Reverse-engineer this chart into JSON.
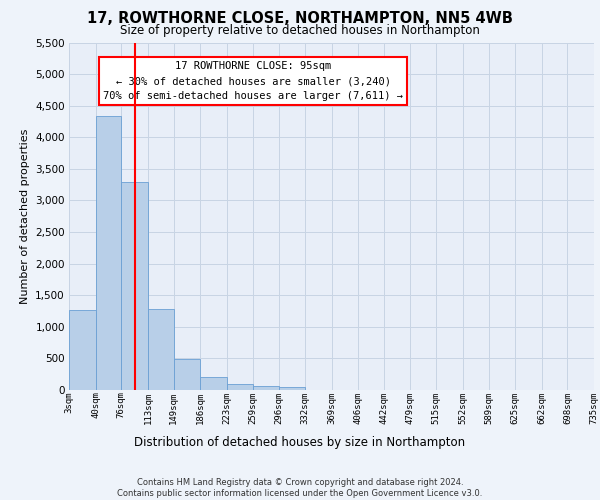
{
  "title": "17, ROWTHORNE CLOSE, NORTHAMPTON, NN5 4WB",
  "subtitle": "Size of property relative to detached houses in Northampton",
  "xlabel": "Distribution of detached houses by size in Northampton",
  "ylabel": "Number of detached properties",
  "bar_values": [
    1270,
    4330,
    3300,
    1280,
    490,
    210,
    90,
    60,
    50,
    0,
    0,
    0,
    0,
    0,
    0,
    0,
    0,
    0,
    0,
    0
  ],
  "bin_edges_labels": [
    "3sqm",
    "40sqm",
    "76sqm",
    "113sqm",
    "149sqm",
    "186sqm",
    "223sqm",
    "259sqm",
    "296sqm",
    "332sqm",
    "369sqm",
    "406sqm",
    "442sqm",
    "479sqm",
    "515sqm",
    "552sqm",
    "589sqm",
    "625sqm",
    "662sqm",
    "698sqm",
    "735sqm"
  ],
  "bar_color": "#b8cfe8",
  "bar_edge_color": "#6a9fd4",
  "ylim": [
    0,
    5500
  ],
  "yticks": [
    0,
    500,
    1000,
    1500,
    2000,
    2500,
    3000,
    3500,
    4000,
    4500,
    5000,
    5500
  ],
  "annotation_text": "17 ROWTHORNE CLOSE: 95sqm\n← 30% of detached houses are smaller (3,240)\n70% of semi-detached houses are larger (7,611) →",
  "footer_text": "Contains HM Land Registry data © Crown copyright and database right 2024.\nContains public sector information licensed under the Open Government Licence v3.0.",
  "background_color": "#eef3fa",
  "plot_bg_color": "#e8eef8",
  "grid_color": "#c8d4e4"
}
